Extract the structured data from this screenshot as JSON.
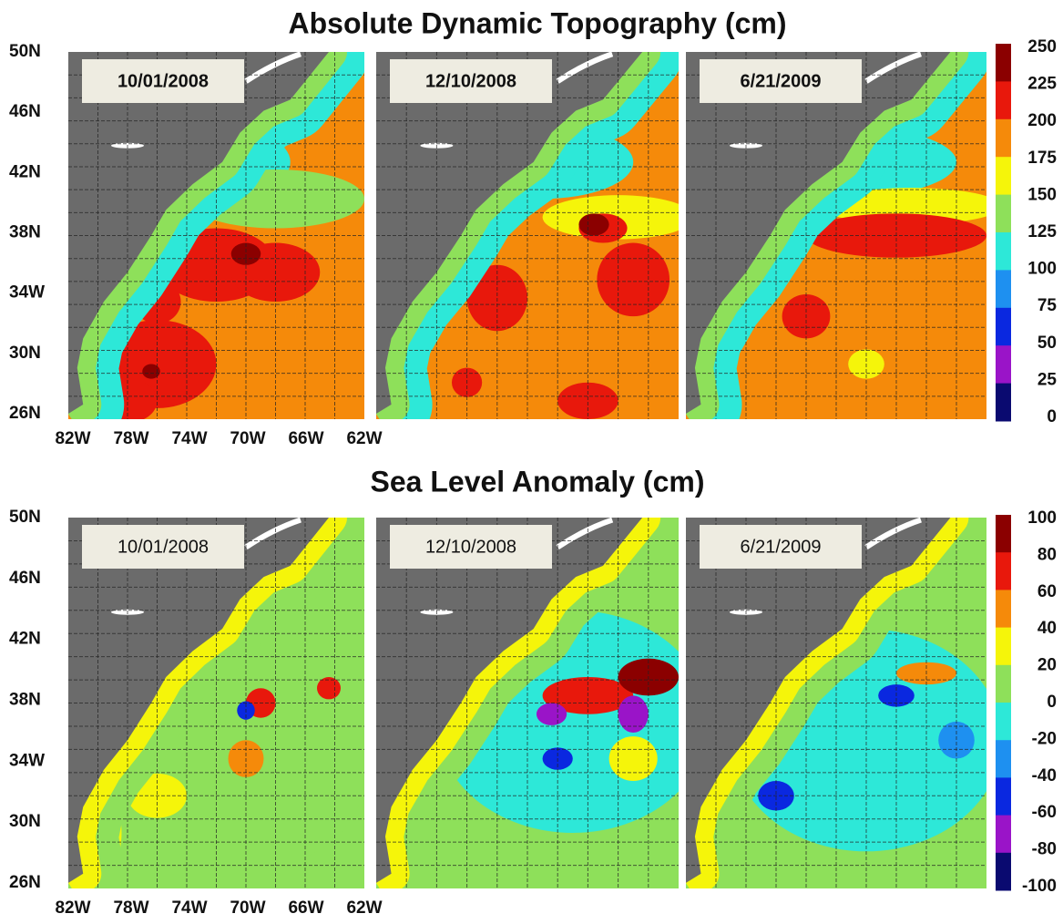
{
  "figures": [
    {
      "title": "Absolute Dynamic Topography (cm)",
      "panels": [
        {
          "date": "10/01/2008"
        },
        {
          "date": "12/10/2008"
        },
        {
          "date": "6/21/2009"
        }
      ],
      "lat_labels": [
        "50N",
        "46N",
        "42N",
        "38N",
        "34W",
        "30N",
        "26N"
      ],
      "lon_labels": [
        "82W",
        "78W",
        "74W",
        "70W",
        "66W",
        "62W"
      ],
      "colorbar": {
        "labels": [
          250,
          225,
          200,
          175,
          150,
          125,
          100,
          75,
          50,
          25,
          0
        ],
        "colors": [
          "#8b0000",
          "#e8180c",
          "#f58a0a",
          "#f5f50a",
          "#8ee05a",
          "#2de8d8",
          "#1e90f0",
          "#0a28e0",
          "#9a14c8",
          "#0a0a70"
        ]
      }
    },
    {
      "title": "Sea Level Anomaly (cm)",
      "panels": [
        {
          "date": "10/01/2008"
        },
        {
          "date": "12/10/2008"
        },
        {
          "date": "6/21/2009"
        }
      ],
      "lat_labels": [
        "50N",
        "46N",
        "42N",
        "38N",
        "34W",
        "30N",
        "26N"
      ],
      "lon_labels": [
        "82W",
        "78W",
        "74W",
        "70W",
        "66W",
        "62W"
      ],
      "colorbar": {
        "labels": [
          100,
          80,
          60,
          40,
          20,
          0,
          -20,
          -40,
          -60,
          -80,
          -100
        ],
        "colors": [
          "#8b0000",
          "#e8180c",
          "#f58a0a",
          "#f5f50a",
          "#8ee05a",
          "#2de8d8",
          "#1e90f0",
          "#0a28e0",
          "#9a14c8",
          "#0a0a70"
        ]
      }
    }
  ]
}
